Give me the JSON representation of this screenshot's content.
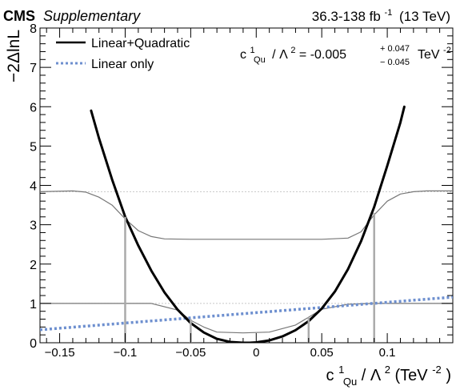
{
  "header": {
    "experiment": "CMS",
    "tag": "Supplementary",
    "lumi_prefix": "36.3-138 fb",
    "lumi_exp": "-1",
    "lumi_suffix": "(13 TeV)"
  },
  "result": {
    "lhs": "c",
    "lhs_sup": "1",
    "lhs_sub": "Qu",
    "over": "/ Λ",
    "over_sup": "2",
    "eq": " = ",
    "central": "-0.005",
    "plus": "+ 0.047",
    "minus": "− 0.045",
    "unit": "TeV",
    "unit_sup": "-2"
  },
  "axes": {
    "ylabel": "−2ΔlnL",
    "xlabel_main": "c",
    "xlabel_sup": "1",
    "xlabel_sub": "Qu",
    "xlabel_rest": " / Λ",
    "xlabel_sup2": "2",
    "xlabel_unit": " (TeV",
    "xlabel_unit_sup": "-2",
    "xlabel_close": ")"
  },
  "chart_data": {
    "type": "line",
    "xlim": [
      -0.165,
      0.15
    ],
    "ylim": [
      0,
      8
    ],
    "xticks": [
      -0.15,
      -0.1,
      -0.05,
      0,
      0.05,
      0.1
    ],
    "xtick_labels": [
      "−0.15",
      "−0.1",
      "−0.05",
      "0",
      "0.05",
      "0.1"
    ],
    "yticks": [
      0,
      1,
      2,
      3,
      4,
      5,
      6,
      7,
      8
    ],
    "ytick_labels": [
      "0",
      "1",
      "2",
      "3",
      "4",
      "5",
      "6",
      "7",
      "8"
    ],
    "reference_lines": [
      1,
      3.84
    ],
    "legend_position": "top-left",
    "series": [
      {
        "name": "Linear+Quadratic",
        "style": "solid",
        "color": "#000000",
        "x": [
          -0.126,
          -0.12,
          -0.11,
          -0.1,
          -0.09,
          -0.08,
          -0.07,
          -0.06,
          -0.05,
          -0.04,
          -0.03,
          -0.02,
          -0.01,
          -0.005,
          0,
          0.01,
          0.02,
          0.03,
          0.04,
          0.05,
          0.06,
          0.07,
          0.08,
          0.09,
          0.1,
          0.11,
          0.113
        ],
        "y": [
          5.9,
          5.2,
          4.15,
          3.2,
          2.47,
          1.83,
          1.28,
          0.84,
          0.5,
          0.26,
          0.1,
          0.02,
          0.0,
          0.0,
          0.01,
          0.06,
          0.16,
          0.32,
          0.55,
          0.87,
          1.3,
          1.87,
          2.58,
          3.45,
          4.5,
          5.6,
          6.0
        ]
      },
      {
        "name": "Linear only",
        "style": "dotted",
        "color": "#6d8fcf",
        "x": [
          -0.165,
          0.15
        ],
        "y": [
          0.33,
          1.16
        ]
      },
      {
        "name": "",
        "style": "thin",
        "color": "#777777",
        "x": [
          -0.165,
          -0.14,
          -0.13,
          -0.12,
          -0.11,
          -0.1,
          -0.09,
          -0.08,
          -0.07,
          -0.05,
          0,
          0.05,
          0.07,
          0.08,
          0.09,
          0.1,
          0.11,
          0.12,
          0.13,
          0.15
        ],
        "y": [
          3.84,
          3.86,
          3.83,
          3.7,
          3.5,
          3.15,
          2.85,
          2.7,
          2.64,
          2.63,
          2.63,
          2.63,
          2.66,
          2.82,
          3.25,
          3.6,
          3.78,
          3.84,
          3.86,
          3.86
        ]
      },
      {
        "name": "",
        "style": "thin",
        "color": "#777777",
        "x": [
          -0.165,
          -0.08,
          -0.06,
          -0.05,
          -0.04,
          -0.03,
          -0.01,
          0.01,
          0.03,
          0.04,
          0.05,
          0.07,
          0.09,
          0.15
        ],
        "y": [
          1.0,
          1.0,
          0.83,
          0.57,
          0.4,
          0.27,
          0.25,
          0.27,
          0.45,
          0.65,
          0.85,
          0.98,
          1.0,
          1.0
        ]
      }
    ],
    "interval_markers": [
      {
        "x": -0.1,
        "y": 3.2
      },
      {
        "x": 0.09,
        "y": 3.3
      },
      {
        "x": -0.05,
        "y": 0.6
      },
      {
        "x": 0.04,
        "y": 0.65
      }
    ]
  }
}
